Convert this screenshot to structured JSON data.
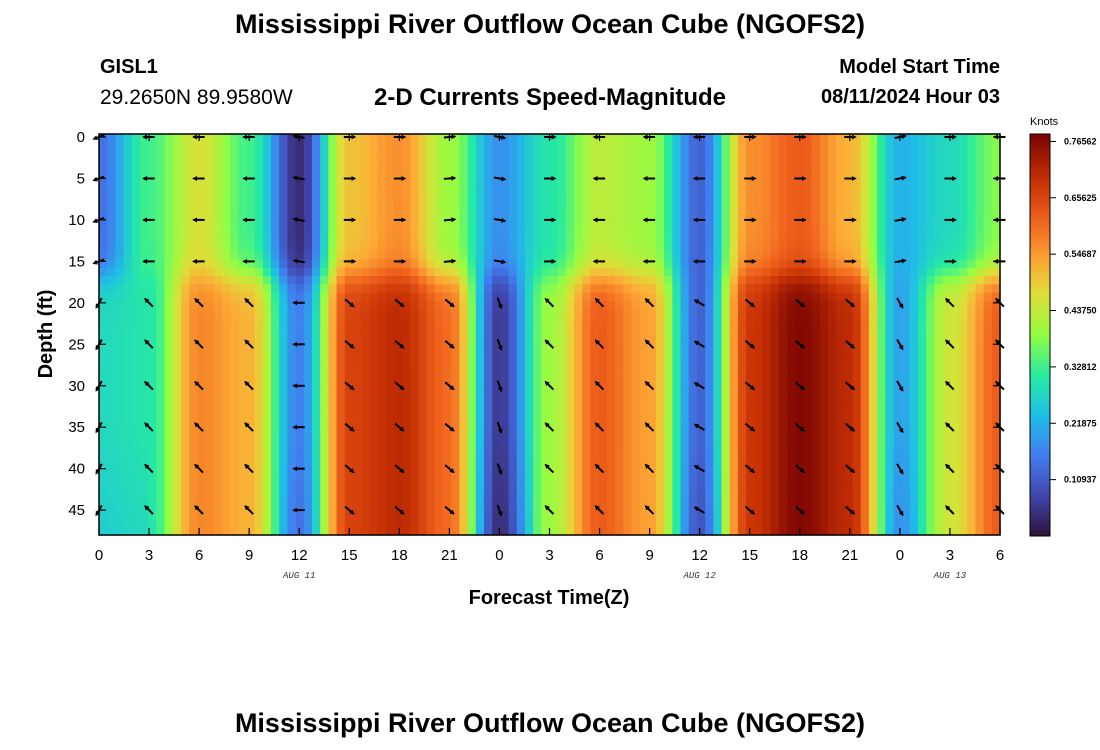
{
  "header": {
    "title": "Mississippi River Outflow Ocean Cube (NGOFS2)",
    "station_name": "GISL1",
    "station_coords": "29.2650N  89.9580W",
    "subtitle": "2-D Currents Speed-Magnitude",
    "start_label": "Model Start Time",
    "start_value": "08/11/2024 Hour 03"
  },
  "footer": {
    "title": "Mississippi River Outflow Ocean Cube (NGOFS2)"
  },
  "chart_data": {
    "type": "heatmap",
    "title": "2-D Currents Speed-Magnitude",
    "xlabel": "Forecast Time(Z)",
    "ylabel": "Depth (ft)",
    "x_range_hours": [
      0,
      54
    ],
    "y_range_ft": [
      0,
      48
    ],
    "x_ticks": [
      {
        "hour": 0,
        "label": "0"
      },
      {
        "hour": 3,
        "label": "3"
      },
      {
        "hour": 6,
        "label": "6"
      },
      {
        "hour": 9,
        "label": "9"
      },
      {
        "hour": 12,
        "label": "12"
      },
      {
        "hour": 15,
        "label": "15"
      },
      {
        "hour": 18,
        "label": "18"
      },
      {
        "hour": 21,
        "label": "21"
      },
      {
        "hour": 24,
        "label": "0"
      },
      {
        "hour": 27,
        "label": "3"
      },
      {
        "hour": 30,
        "label": "6"
      },
      {
        "hour": 33,
        "label": "9"
      },
      {
        "hour": 36,
        "label": "12"
      },
      {
        "hour": 39,
        "label": "15"
      },
      {
        "hour": 42,
        "label": "18"
      },
      {
        "hour": 45,
        "label": "21"
      },
      {
        "hour": 48,
        "label": "0"
      },
      {
        "hour": 51,
        "label": "3"
      },
      {
        "hour": 54,
        "label": "6"
      }
    ],
    "date_labels": [
      {
        "hour": 12,
        "label": "AUG 11"
      },
      {
        "hour": 36,
        "label": "AUG 12"
      },
      {
        "hour": 51,
        "label": "AUG 13"
      }
    ],
    "y_ticks": [
      0,
      5,
      10,
      15,
      20,
      25,
      30,
      35,
      40,
      45
    ],
    "colorbar": {
      "unit": "Knots",
      "min": 0.0,
      "max": 0.78,
      "labels": [
        "0.76562",
        "0.65625",
        "0.54687",
        "0.43750",
        "0.32812",
        "0.21875",
        "0.10937"
      ]
    },
    "surface_layer_speed": [
      {
        "hour": 0,
        "speed": 0.14
      },
      {
        "hour": 3,
        "speed": 0.33
      },
      {
        "hour": 6,
        "speed": 0.46
      },
      {
        "hour": 9,
        "speed": 0.33
      },
      {
        "hour": 12,
        "speed": 0.04
      },
      {
        "hour": 15,
        "speed": 0.5
      },
      {
        "hour": 18,
        "speed": 0.56
      },
      {
        "hour": 21,
        "speed": 0.4
      },
      {
        "hour": 24,
        "speed": 0.18
      },
      {
        "hour": 27,
        "speed": 0.3
      },
      {
        "hour": 30,
        "speed": 0.43
      },
      {
        "hour": 33,
        "speed": 0.4
      },
      {
        "hour": 36,
        "speed": 0.12
      },
      {
        "hour": 39,
        "speed": 0.56
      },
      {
        "hour": 42,
        "speed": 0.62
      },
      {
        "hour": 45,
        "speed": 0.52
      },
      {
        "hour": 48,
        "speed": 0.22
      },
      {
        "hour": 51,
        "speed": 0.28
      },
      {
        "hour": 54,
        "speed": 0.38
      }
    ],
    "deep_layer_speed": [
      {
        "hour": 0,
        "speed": 0.28
      },
      {
        "hour": 3,
        "speed": 0.3
      },
      {
        "hour": 6,
        "speed": 0.57
      },
      {
        "hour": 9,
        "speed": 0.52
      },
      {
        "hour": 12,
        "speed": 0.16
      },
      {
        "hour": 15,
        "speed": 0.66
      },
      {
        "hour": 18,
        "speed": 0.7
      },
      {
        "hour": 21,
        "speed": 0.6
      },
      {
        "hour": 24,
        "speed": 0.06
      },
      {
        "hour": 27,
        "speed": 0.4
      },
      {
        "hour": 30,
        "speed": 0.62
      },
      {
        "hour": 33,
        "speed": 0.54
      },
      {
        "hour": 36,
        "speed": 0.12
      },
      {
        "hour": 39,
        "speed": 0.68
      },
      {
        "hour": 42,
        "speed": 0.77
      },
      {
        "hour": 45,
        "speed": 0.7
      },
      {
        "hour": 48,
        "speed": 0.2
      },
      {
        "hour": 51,
        "speed": 0.45
      },
      {
        "hour": 54,
        "speed": 0.62
      }
    ],
    "arrow_depths_ft": [
      0,
      5,
      10,
      15,
      20,
      25,
      30,
      35,
      40,
      45
    ],
    "surface_direction_deg": [
      {
        "hour": 0,
        "deg": 200
      },
      {
        "hour": 3,
        "deg": 180
      },
      {
        "hour": 6,
        "deg": 180
      },
      {
        "hour": 9,
        "deg": 180
      },
      {
        "hour": 12,
        "deg": 170
      },
      {
        "hour": 15,
        "deg": 0
      },
      {
        "hour": 18,
        "deg": 0
      },
      {
        "hour": 21,
        "deg": 5
      },
      {
        "hour": 24,
        "deg": 350
      },
      {
        "hour": 27,
        "deg": 0
      },
      {
        "hour": 30,
        "deg": 180
      },
      {
        "hour": 33,
        "deg": 180
      },
      {
        "hour": 36,
        "deg": 180
      },
      {
        "hour": 39,
        "deg": 0
      },
      {
        "hour": 42,
        "deg": 0
      },
      {
        "hour": 45,
        "deg": 0
      },
      {
        "hour": 48,
        "deg": 10
      },
      {
        "hour": 51,
        "deg": 0
      },
      {
        "hour": 54,
        "deg": 180
      }
    ],
    "deep_direction_deg": [
      {
        "hour": 0,
        "deg": 240
      },
      {
        "hour": 3,
        "deg": 135
      },
      {
        "hour": 6,
        "deg": 135
      },
      {
        "hour": 9,
        "deg": 135
      },
      {
        "hour": 12,
        "deg": 180
      },
      {
        "hour": 15,
        "deg": 320
      },
      {
        "hour": 18,
        "deg": 320
      },
      {
        "hour": 21,
        "deg": 320
      },
      {
        "hour": 24,
        "deg": 290
      },
      {
        "hour": 27,
        "deg": 135
      },
      {
        "hour": 30,
        "deg": 135
      },
      {
        "hour": 33,
        "deg": 135
      },
      {
        "hour": 36,
        "deg": 150
      },
      {
        "hour": 39,
        "deg": 320
      },
      {
        "hour": 42,
        "deg": 320
      },
      {
        "hour": 45,
        "deg": 320
      },
      {
        "hour": 48,
        "deg": 300
      },
      {
        "hour": 51,
        "deg": 135
      },
      {
        "hour": 54,
        "deg": 135
      }
    ]
  }
}
